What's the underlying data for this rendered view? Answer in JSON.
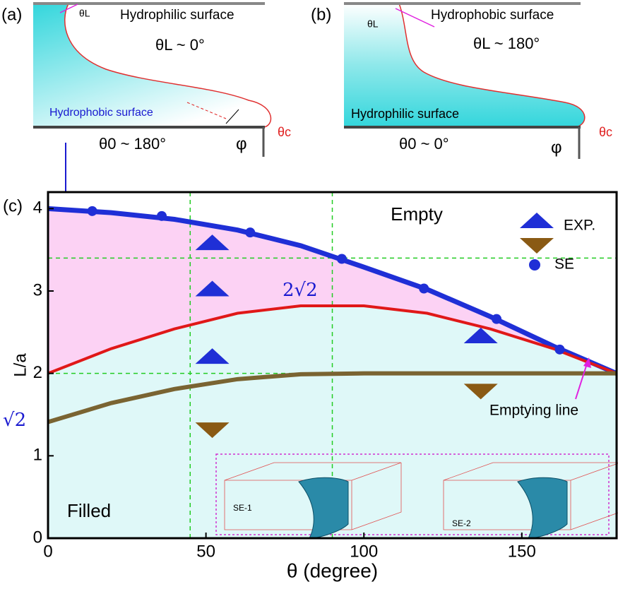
{
  "panel_a": {
    "label": "(a)",
    "theta_l": "θL",
    "top_surface": "Hydrophilic surface",
    "top_angle": "θL ~ 0°",
    "bottom_surface": "Hydrophobic surface",
    "bottom_angle": "θ0 ~ 180°",
    "phi": "φ",
    "theta_c": "θc"
  },
  "panel_b": {
    "label": "(b)",
    "theta_l": "θL",
    "top_surface": "Hydrophobic surface",
    "top_angle": "θL ~ 180°",
    "bottom_surface": "Hydrophilic surface",
    "bottom_angle": "θ0 ~ 0°",
    "phi": "φ",
    "theta_c": "θc"
  },
  "chart_data": {
    "type": "line",
    "panel_label": "(c)",
    "xlabel": "θ (degree)",
    "ylabel": "L/a",
    "xlim": [
      0,
      180
    ],
    "ylim": [
      0,
      4.2
    ],
    "xticks": [
      0,
      50,
      100,
      150
    ],
    "yticks": [
      0,
      1,
      2,
      3,
      4
    ],
    "ref_x": [
      45,
      90
    ],
    "ref_y": [
      2,
      3.4
    ],
    "region_top": "Empty",
    "region_bottom": "Filled",
    "max_label": "2√2",
    "min_label": "√2",
    "annotation": "Emptying line",
    "inset_labels": [
      "SE-1",
      "SE-2"
    ],
    "legend": "upper right",
    "lines": [
      {
        "color": "#1f2fd6",
        "x": [
          0,
          20,
          40,
          60,
          80,
          100,
          120,
          140,
          160,
          180
        ],
        "values": [
          4.0,
          3.95,
          3.87,
          3.74,
          3.55,
          3.29,
          3.02,
          2.69,
          2.33,
          2.0
        ]
      },
      {
        "color": "#e01818",
        "x": [
          0,
          20,
          40,
          60,
          80,
          100,
          120,
          140,
          160,
          180
        ],
        "values": [
          2.0,
          2.3,
          2.54,
          2.73,
          2.82,
          2.82,
          2.73,
          2.54,
          2.3,
          2.0
        ]
      },
      {
        "color": "#7a6432",
        "x": [
          0,
          20,
          40,
          60,
          80,
          100,
          120,
          140,
          160,
          180
        ],
        "values": [
          1.41,
          1.64,
          1.81,
          1.93,
          1.99,
          2,
          2,
          2,
          2,
          2
        ]
      }
    ],
    "series": [
      {
        "name": "SE",
        "marker": "circle",
        "color": "#1f2fd6",
        "x": [
          14,
          36,
          64,
          93,
          119,
          142,
          162
        ],
        "values": [
          3.97,
          3.91,
          3.71,
          3.39,
          3.03,
          2.66,
          2.29
        ]
      },
      {
        "name": "EXP.",
        "marker": "triangle-up",
        "color": "#1f2fd6",
        "x": [
          52,
          52,
          52,
          137
        ],
        "values": [
          3.59,
          3.03,
          2.21,
          2.46
        ]
      },
      {
        "marker": "triangle-down",
        "color": "#8a5a14",
        "x": [
          52,
          137
        ],
        "values": [
          1.31,
          1.78
        ]
      }
    ]
  }
}
